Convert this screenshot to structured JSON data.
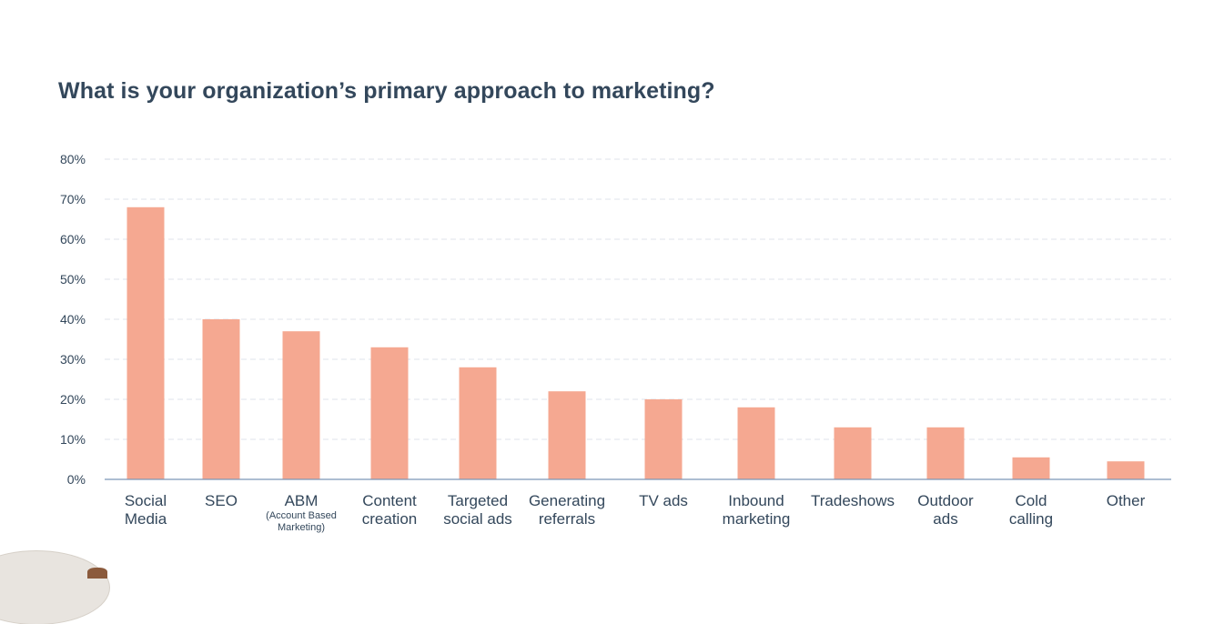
{
  "chart_data": {
    "type": "bar",
    "title": "What is your organization’s primary approach to marketing?",
    "categories": [
      {
        "lines": [
          "Social",
          "Media"
        ],
        "sub": []
      },
      {
        "lines": [
          "SEO"
        ],
        "sub": []
      },
      {
        "lines": [
          "ABM"
        ],
        "sub": [
          "(Account Based",
          "Marketing)"
        ]
      },
      {
        "lines": [
          "Content",
          "creation"
        ],
        "sub": []
      },
      {
        "lines": [
          "Targeted",
          "social ads"
        ],
        "sub": []
      },
      {
        "lines": [
          "Generating",
          "referrals"
        ],
        "sub": []
      },
      {
        "lines": [
          "TV ads"
        ],
        "sub": []
      },
      {
        "lines": [
          "Inbound",
          "marketing"
        ],
        "sub": []
      },
      {
        "lines": [
          "Tradeshows"
        ],
        "sub": []
      },
      {
        "lines": [
          "Outdoor",
          "ads"
        ],
        "sub": []
      },
      {
        "lines": [
          "Cold",
          "calling"
        ],
        "sub": []
      },
      {
        "lines": [
          "Other"
        ],
        "sub": []
      }
    ],
    "values": [
      68,
      40,
      37,
      33,
      28,
      22,
      20,
      18,
      13,
      13,
      5.5,
      4.5
    ],
    "yticks": [
      "0%",
      "10%",
      "20%",
      "30%",
      "40%",
      "50%",
      "60%",
      "70%",
      "80%"
    ],
    "ylim": [
      0,
      80
    ],
    "grid": true,
    "bar_color": "#f5a891",
    "grid_color": "#dfe3eb",
    "axis_color": "#7c98b6",
    "text_color": "#33475b"
  }
}
